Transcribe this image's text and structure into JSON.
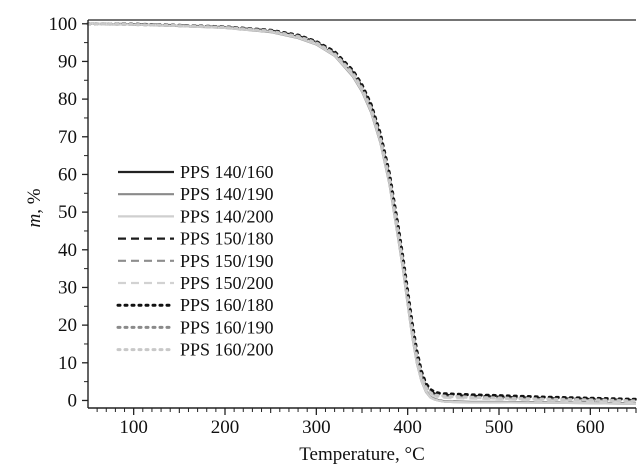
{
  "chart_data": {
    "type": "line",
    "title": "",
    "xlabel": "Temperature, °C",
    "ylabel_italic": "m",
    "ylabel_rest": ", %",
    "xlim": [
      50,
      650
    ],
    "ylim": [
      -2,
      101
    ],
    "x_ticks": [
      100,
      200,
      300,
      400,
      500,
      600
    ],
    "y_ticks": [
      0,
      10,
      20,
      30,
      40,
      50,
      60,
      70,
      80,
      90,
      100
    ],
    "grid": false,
    "legend_position": "center-left",
    "series": [
      {
        "name": "PPS 140/160",
        "color": "#222222",
        "dash": "solid",
        "width": 2.2,
        "x": [
          50,
          100,
          150,
          200,
          250,
          280,
          300,
          320,
          340,
          350,
          360,
          370,
          380,
          390,
          395,
          400,
          405,
          410,
          415,
          420,
          425,
          430,
          435,
          440,
          450,
          470,
          500,
          550,
          600,
          650
        ],
        "y": [
          100,
          99.8,
          99.5,
          99,
          98,
          96.5,
          94.8,
          91.8,
          86.5,
          82.5,
          77,
          69,
          58,
          43,
          35,
          26,
          17.5,
          10.5,
          5.5,
          2.5,
          0.9,
          0.3,
          0,
          -0.2,
          -0.3,
          -0.4,
          -0.4,
          -0.5,
          -0.6,
          -0.8
        ]
      },
      {
        "name": "PPS 140/190",
        "color": "#8a8a8a",
        "dash": "solid",
        "width": 2.2,
        "x": [
          50,
          100,
          150,
          200,
          250,
          280,
          300,
          320,
          340,
          350,
          360,
          370,
          380,
          390,
          395,
          400,
          405,
          410,
          415,
          420,
          425,
          430,
          435,
          440,
          450,
          470,
          500,
          550,
          600,
          650
        ],
        "y": [
          100,
          99.8,
          99.4,
          98.9,
          97.8,
          96.2,
          94.5,
          91.5,
          86,
          82,
          76.5,
          68.5,
          57.5,
          42.5,
          34.5,
          25.5,
          17,
          10,
          5.2,
          2.3,
          0.8,
          0.2,
          -0.1,
          -0.3,
          -0.4,
          -0.5,
          -0.5,
          -0.6,
          -0.7,
          -0.9
        ]
      },
      {
        "name": "PPS 140/200",
        "color": "#cfcfcf",
        "dash": "solid",
        "width": 2.2,
        "x": [
          50,
          100,
          150,
          200,
          250,
          280,
          300,
          320,
          340,
          350,
          360,
          370,
          380,
          390,
          395,
          400,
          405,
          410,
          415,
          420,
          425,
          430,
          435,
          440,
          450,
          470,
          500,
          550,
          600,
          650
        ],
        "y": [
          100,
          99.8,
          99.5,
          99,
          97.9,
          96.3,
          94.6,
          91.6,
          86.2,
          82.2,
          76.8,
          68.8,
          57.8,
          42.8,
          34.8,
          25.8,
          17.2,
          10.2,
          5.3,
          2.4,
          0.8,
          0.2,
          -0.1,
          -0.3,
          -0.4,
          -0.5,
          -0.5,
          -0.6,
          -0.7,
          -0.9
        ]
      },
      {
        "name": "PPS 150/180",
        "color": "#1c1c1c",
        "dash": "8 5",
        "width": 2.2,
        "x": [
          50,
          100,
          150,
          200,
          250,
          280,
          300,
          320,
          340,
          350,
          360,
          370,
          380,
          390,
          395,
          400,
          405,
          410,
          415,
          420,
          425,
          430,
          435,
          440,
          450,
          470,
          500,
          550,
          600,
          650
        ],
        "y": [
          100,
          99.9,
          99.6,
          99.1,
          98.2,
          96.8,
          95.1,
          92.3,
          87.2,
          83.3,
          78,
          70.2,
          59.5,
          44.8,
          36.8,
          28,
          19.5,
          12.2,
          7,
          3.8,
          2.4,
          1.8,
          1.6,
          1.5,
          1.4,
          1.2,
          1,
          0.6,
          0.4,
          0.1
        ]
      },
      {
        "name": "PPS 150/190",
        "color": "#8e8e8e",
        "dash": "8 5",
        "width": 2.2,
        "x": [
          50,
          100,
          150,
          200,
          250,
          280,
          300,
          320,
          340,
          350,
          360,
          370,
          380,
          390,
          395,
          400,
          405,
          410,
          415,
          420,
          425,
          430,
          435,
          440,
          450,
          470,
          500,
          550,
          600,
          650
        ],
        "y": [
          100,
          99.8,
          99.5,
          99,
          98,
          96.5,
          94.8,
          91.9,
          86.7,
          82.7,
          77.3,
          69.4,
          58.6,
          43.8,
          35.8,
          27,
          18.5,
          11.3,
          6.3,
          3.3,
          1.9,
          1.3,
          1.1,
          1,
          0.9,
          0.8,
          0.6,
          0.3,
          0.1,
          -0.2
        ]
      },
      {
        "name": "PPS 150/200",
        "color": "#d2d2d2",
        "dash": "8 5",
        "width": 2.2,
        "x": [
          50,
          100,
          150,
          200,
          250,
          280,
          300,
          320,
          340,
          350,
          360,
          370,
          380,
          390,
          395,
          400,
          405,
          410,
          415,
          420,
          425,
          430,
          435,
          440,
          450,
          470,
          500,
          550,
          600,
          650
        ],
        "y": [
          100,
          99.8,
          99.4,
          98.9,
          97.9,
          96.4,
          94.7,
          91.7,
          86.4,
          82.4,
          77,
          69,
          58.2,
          43.3,
          35.3,
          26.5,
          18,
          10.8,
          5.9,
          2.9,
          1.5,
          1,
          0.8,
          0.7,
          0.6,
          0.5,
          0.3,
          0,
          -0.2,
          -0.5
        ]
      },
      {
        "name": "PPS 160/180",
        "color": "#111111",
        "dash": "2 5",
        "width": 3,
        "x": [
          50,
          100,
          150,
          200,
          250,
          280,
          300,
          320,
          340,
          350,
          360,
          370,
          380,
          390,
          395,
          400,
          405,
          410,
          415,
          420,
          425,
          430,
          435,
          440,
          450,
          470,
          500,
          550,
          600,
          650
        ],
        "y": [
          100,
          99.9,
          99.6,
          99.2,
          98.3,
          97,
          95.3,
          92.6,
          87.6,
          83.8,
          78.6,
          70.9,
          60.3,
          45.7,
          37.7,
          29,
          20.5,
          13.2,
          7.8,
          4.5,
          2.9,
          2.2,
          1.9,
          1.8,
          1.7,
          1.5,
          1.3,
          0.9,
          0.6,
          0.3
        ]
      },
      {
        "name": "PPS 160/190",
        "color": "#8a8a8a",
        "dash": "2 5",
        "width": 3,
        "x": [
          50,
          100,
          150,
          200,
          250,
          280,
          300,
          320,
          340,
          350,
          360,
          370,
          380,
          390,
          395,
          400,
          405,
          410,
          415,
          420,
          425,
          430,
          435,
          440,
          450,
          470,
          500,
          550,
          600,
          650
        ],
        "y": [
          100,
          99.8,
          99.5,
          99.1,
          98.1,
          96.7,
          95,
          92.1,
          87,
          83,
          77.7,
          69.8,
          59.1,
          44.3,
          36.3,
          27.5,
          19,
          11.8,
          6.6,
          3.6,
          2.1,
          1.5,
          1.3,
          1.2,
          1.1,
          0.9,
          0.7,
          0.4,
          0.2,
          -0.1
        ]
      },
      {
        "name": "PPS 160/200",
        "color": "#c8c8c8",
        "dash": "2 5",
        "width": 3,
        "x": [
          50,
          100,
          150,
          200,
          250,
          280,
          300,
          320,
          340,
          350,
          360,
          370,
          380,
          390,
          395,
          400,
          405,
          410,
          415,
          420,
          425,
          430,
          435,
          440,
          450,
          470,
          500,
          550,
          600,
          650
        ],
        "y": [
          100,
          99.8,
          99.5,
          99,
          98,
          96.6,
          94.9,
          92,
          86.8,
          82.8,
          77.4,
          69.5,
          58.8,
          44,
          36,
          27.2,
          18.7,
          11.5,
          6.4,
          3.4,
          2,
          1.4,
          1.2,
          1.1,
          1,
          0.8,
          0.6,
          0.3,
          0.1,
          -0.2
        ]
      }
    ]
  }
}
